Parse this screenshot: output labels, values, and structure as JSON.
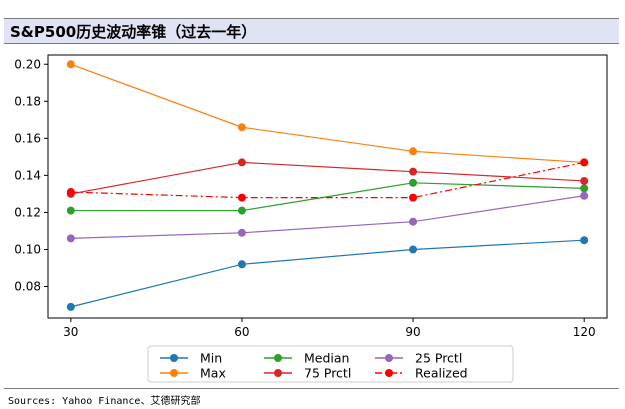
{
  "header": {
    "title": "S&P500历史波动率锥（过去一年）"
  },
  "source": "Sources: Yahoo Finance、艾德研究部",
  "chart_data": {
    "type": "line",
    "title": "",
    "xlabel": "",
    "ylabel": "",
    "x": [
      30,
      60,
      90,
      120
    ],
    "x_ticks": [
      "30",
      "60",
      "90",
      "120"
    ],
    "y_ticks": [
      "0.08",
      "0.10",
      "0.12",
      "0.14",
      "0.16",
      "0.18",
      "0.20"
    ],
    "ylim": [
      0.063,
      0.205
    ],
    "xlim": [
      26,
      124
    ],
    "grid": false,
    "legend_position": "bottom-outside",
    "series": [
      {
        "name": "Min",
        "values": [
          0.069,
          0.092,
          0.1,
          0.105
        ],
        "color": "#1f77b4",
        "style": "solid"
      },
      {
        "name": "Max",
        "values": [
          0.2,
          0.166,
          0.153,
          0.147
        ],
        "color": "#ff7f0e",
        "style": "solid"
      },
      {
        "name": "Median",
        "values": [
          0.121,
          0.121,
          0.136,
          0.133
        ],
        "color": "#2ca02c",
        "style": "solid"
      },
      {
        "name": "75 Prctl",
        "values": [
          0.13,
          0.147,
          0.142,
          0.137
        ],
        "color": "#d62728",
        "style": "solid"
      },
      {
        "name": "25 Prctl",
        "values": [
          0.106,
          0.109,
          0.115,
          0.129
        ],
        "color": "#9467bd",
        "style": "solid"
      },
      {
        "name": "Realized",
        "values": [
          0.131,
          0.128,
          0.128,
          0.147
        ],
        "color": "#ff0000",
        "style": "dashdot"
      }
    ],
    "legend_order": [
      "Min",
      "Max",
      "Median",
      "75 Prctl",
      "25 Prctl",
      "Realized"
    ]
  }
}
